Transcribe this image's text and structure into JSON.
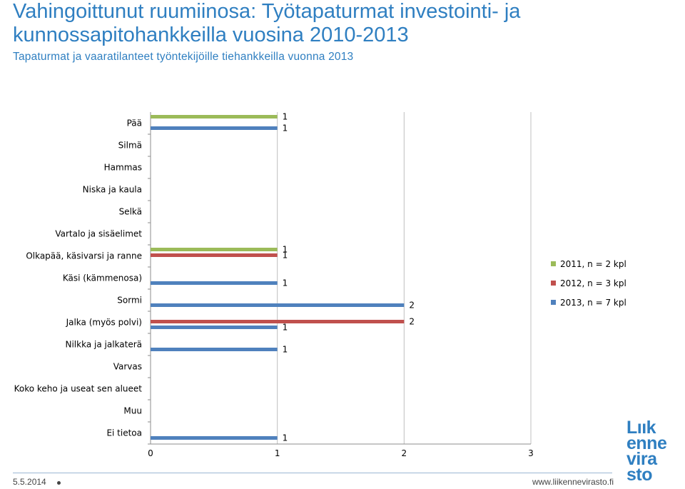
{
  "header": {
    "title": "Vahingoittunut ruumiinosa: Työtapaturmat investointi- ja kunnossapitohankkeilla vuosina 2010-2013",
    "subtitle": "Tapaturmat ja vaaratilanteet työntekijöille tiehankkeilla vuonna 2013"
  },
  "footer": {
    "date": "5.5.2014",
    "url": "www.liikennevirasto.fi",
    "logo_lines": [
      "Lıık",
      "enne",
      "vira",
      "sto"
    ]
  },
  "colors": {
    "s2011": "#9bbb59",
    "s2012": "#c0504d",
    "s2013": "#4f81bd",
    "grid": "#c0c0c0",
    "brand": "#2f7fc1"
  },
  "chart_data": {
    "type": "bar",
    "orientation": "horizontal",
    "categories": [
      "Pää",
      "Silmä",
      "Hammas",
      "Niska ja kaula",
      "Selkä",
      "Vartalo ja sisäelimet",
      "Olkapää, käsivarsi ja ranne",
      "Käsi (kämmenosa)",
      "Sormi",
      "Jalka (myös polvi)",
      "Nilkka ja jalkaterä",
      "Varvas",
      "Koko keho ja useat sen alueet",
      "Muu",
      "Ei tietoa"
    ],
    "series": [
      {
        "name": "2011, n = 2 kpl",
        "values": [
          1,
          0,
          0,
          0,
          0,
          0,
          1,
          0,
          0,
          0,
          0,
          0,
          0,
          0,
          0
        ]
      },
      {
        "name": "2012, n = 3 kpl",
        "values": [
          0,
          0,
          0,
          0,
          0,
          0,
          1,
          0,
          0,
          2,
          0,
          0,
          0,
          0,
          0
        ]
      },
      {
        "name": "2013, n = 7 kpl",
        "values": [
          1,
          0,
          0,
          0,
          0,
          0,
          0,
          1,
          2,
          1,
          1,
          0,
          0,
          0,
          1
        ]
      }
    ],
    "xlim": [
      0,
      3
    ],
    "xticks": [
      0,
      1,
      2,
      3
    ],
    "grid": true,
    "legend": "right"
  }
}
